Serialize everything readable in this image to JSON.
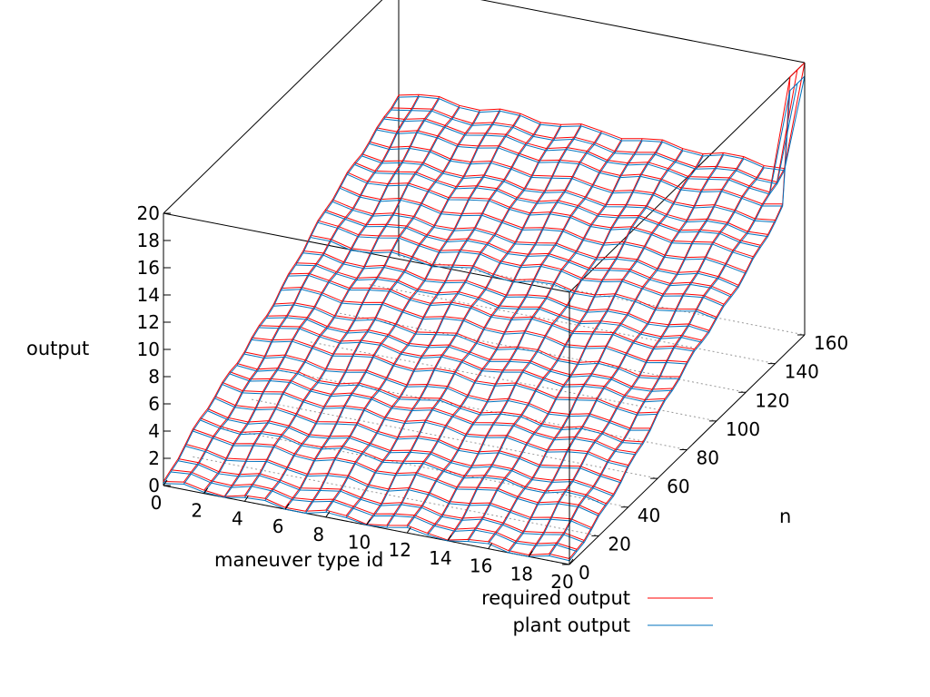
{
  "chart_data": {
    "type": "surface",
    "zlabel": "output",
    "xlabel": "maneuver type id",
    "ylabel": "n",
    "xlim": [
      0,
      20
    ],
    "ylim": [
      0,
      160
    ],
    "zlim": [
      0,
      20
    ],
    "x_ticks": [
      "0",
      "2",
      "4",
      "6",
      "8",
      "10",
      "12",
      "14",
      "16",
      "18",
      "20"
    ],
    "y_ticks": [
      "0",
      "20",
      "40",
      "60",
      "80",
      "100",
      "120",
      "140",
      "160"
    ],
    "z_ticks": [
      "0",
      "2",
      "4",
      "6",
      "8",
      "10",
      "12",
      "14",
      "16",
      "18",
      "20"
    ],
    "grid": "floor dotted",
    "legend_position": "bottom-right",
    "series": [
      {
        "name": "required output",
        "color": "#ff0000",
        "render": "mesh",
        "approx_surface": "output rises roughly linearly with n from ~0 at n=0 to ~12 at n=160, nearly constant across maneuver type id; spike to ~20 at x=20, n=160"
      },
      {
        "name": "plant output",
        "color": "#0072bd",
        "render": "mesh",
        "approx_surface": "closely tracks required output, reaching ~12 at n=160; spike to ~19 at x=20, n=160"
      }
    ]
  }
}
